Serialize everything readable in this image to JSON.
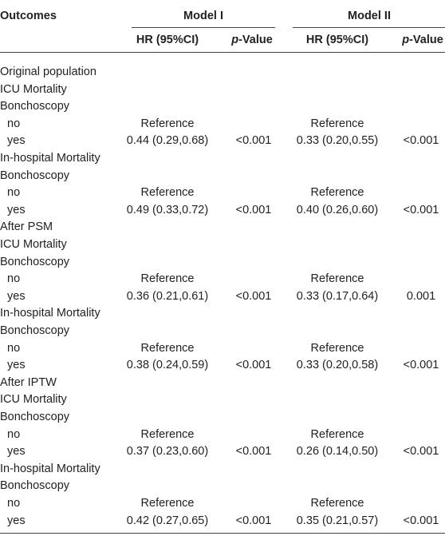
{
  "table": {
    "header": {
      "outcomes": "Outcomes",
      "model1": "Model I",
      "model2": "Model II",
      "hr1": "HR (95%CI)",
      "p1": "p-Value",
      "hr2": "HR (95%CI)",
      "p2": "p-Value"
    },
    "rows": [
      {
        "label": "Original population"
      },
      {
        "label": "ICU Mortality"
      },
      {
        "label": "Bonchoscopy"
      },
      {
        "label": "no",
        "hr1": "Reference",
        "hr2": "Reference"
      },
      {
        "label": "yes",
        "hr1": "0.44 (0.29,0.68)",
        "p1": "<0.001",
        "hr2": "0.33 (0.20,0.55)",
        "p2": "<0.001"
      },
      {
        "label": "In-hospital Mortality"
      },
      {
        "label": "Bonchoscopy"
      },
      {
        "label": "no",
        "hr1": "Reference",
        "hr2": "Reference"
      },
      {
        "label": "yes",
        "hr1": "0.49 (0.33,0.72)",
        "p1": "<0.001",
        "hr2": "0.40 (0.26,0.60)",
        "p2": "<0.001"
      },
      {
        "label": "After PSM"
      },
      {
        "label": "ICU Mortality"
      },
      {
        "label": "Bonchoscopy"
      },
      {
        "label": "no",
        "hr1": "Reference",
        "hr2": "Reference"
      },
      {
        "label": "yes",
        "hr1": "0.36 (0.21,0.61)",
        "p1": "<0.001",
        "hr2": "0.33 (0.17,0.64)",
        "p2": "0.001"
      },
      {
        "label": "In-hospital Mortality"
      },
      {
        "label": "Bonchoscopy"
      },
      {
        "label": "no",
        "hr1": "Reference",
        "hr2": "Reference"
      },
      {
        "label": "yes",
        "hr1": "0.38 (0.24,0.59)",
        "p1": "<0.001",
        "hr2": "0.33 (0.20,0.58)",
        "p2": "<0.001"
      },
      {
        "label": "After IPTW"
      },
      {
        "label": "ICU Mortality"
      },
      {
        "label": "Bonchoscopy"
      },
      {
        "label": "no",
        "hr1": "Reference",
        "hr2": "Reference"
      },
      {
        "label": "yes",
        "hr1": "0.37 (0.23,0.60)",
        "p1": "<0.001",
        "hr2": "0.26 (0.14,0.50)",
        "p2": "<0.001"
      },
      {
        "label": "In-hospital Mortality"
      },
      {
        "label": "Bonchoscopy"
      },
      {
        "label": "no",
        "hr1": "Reference",
        "hr2": "Reference"
      },
      {
        "label": "yes",
        "hr1": "0.42 (0.27,0.65)",
        "p1": "<0.001",
        "hr2": "0.35 (0.21,0.57)",
        "p2": "<0.001"
      }
    ]
  }
}
